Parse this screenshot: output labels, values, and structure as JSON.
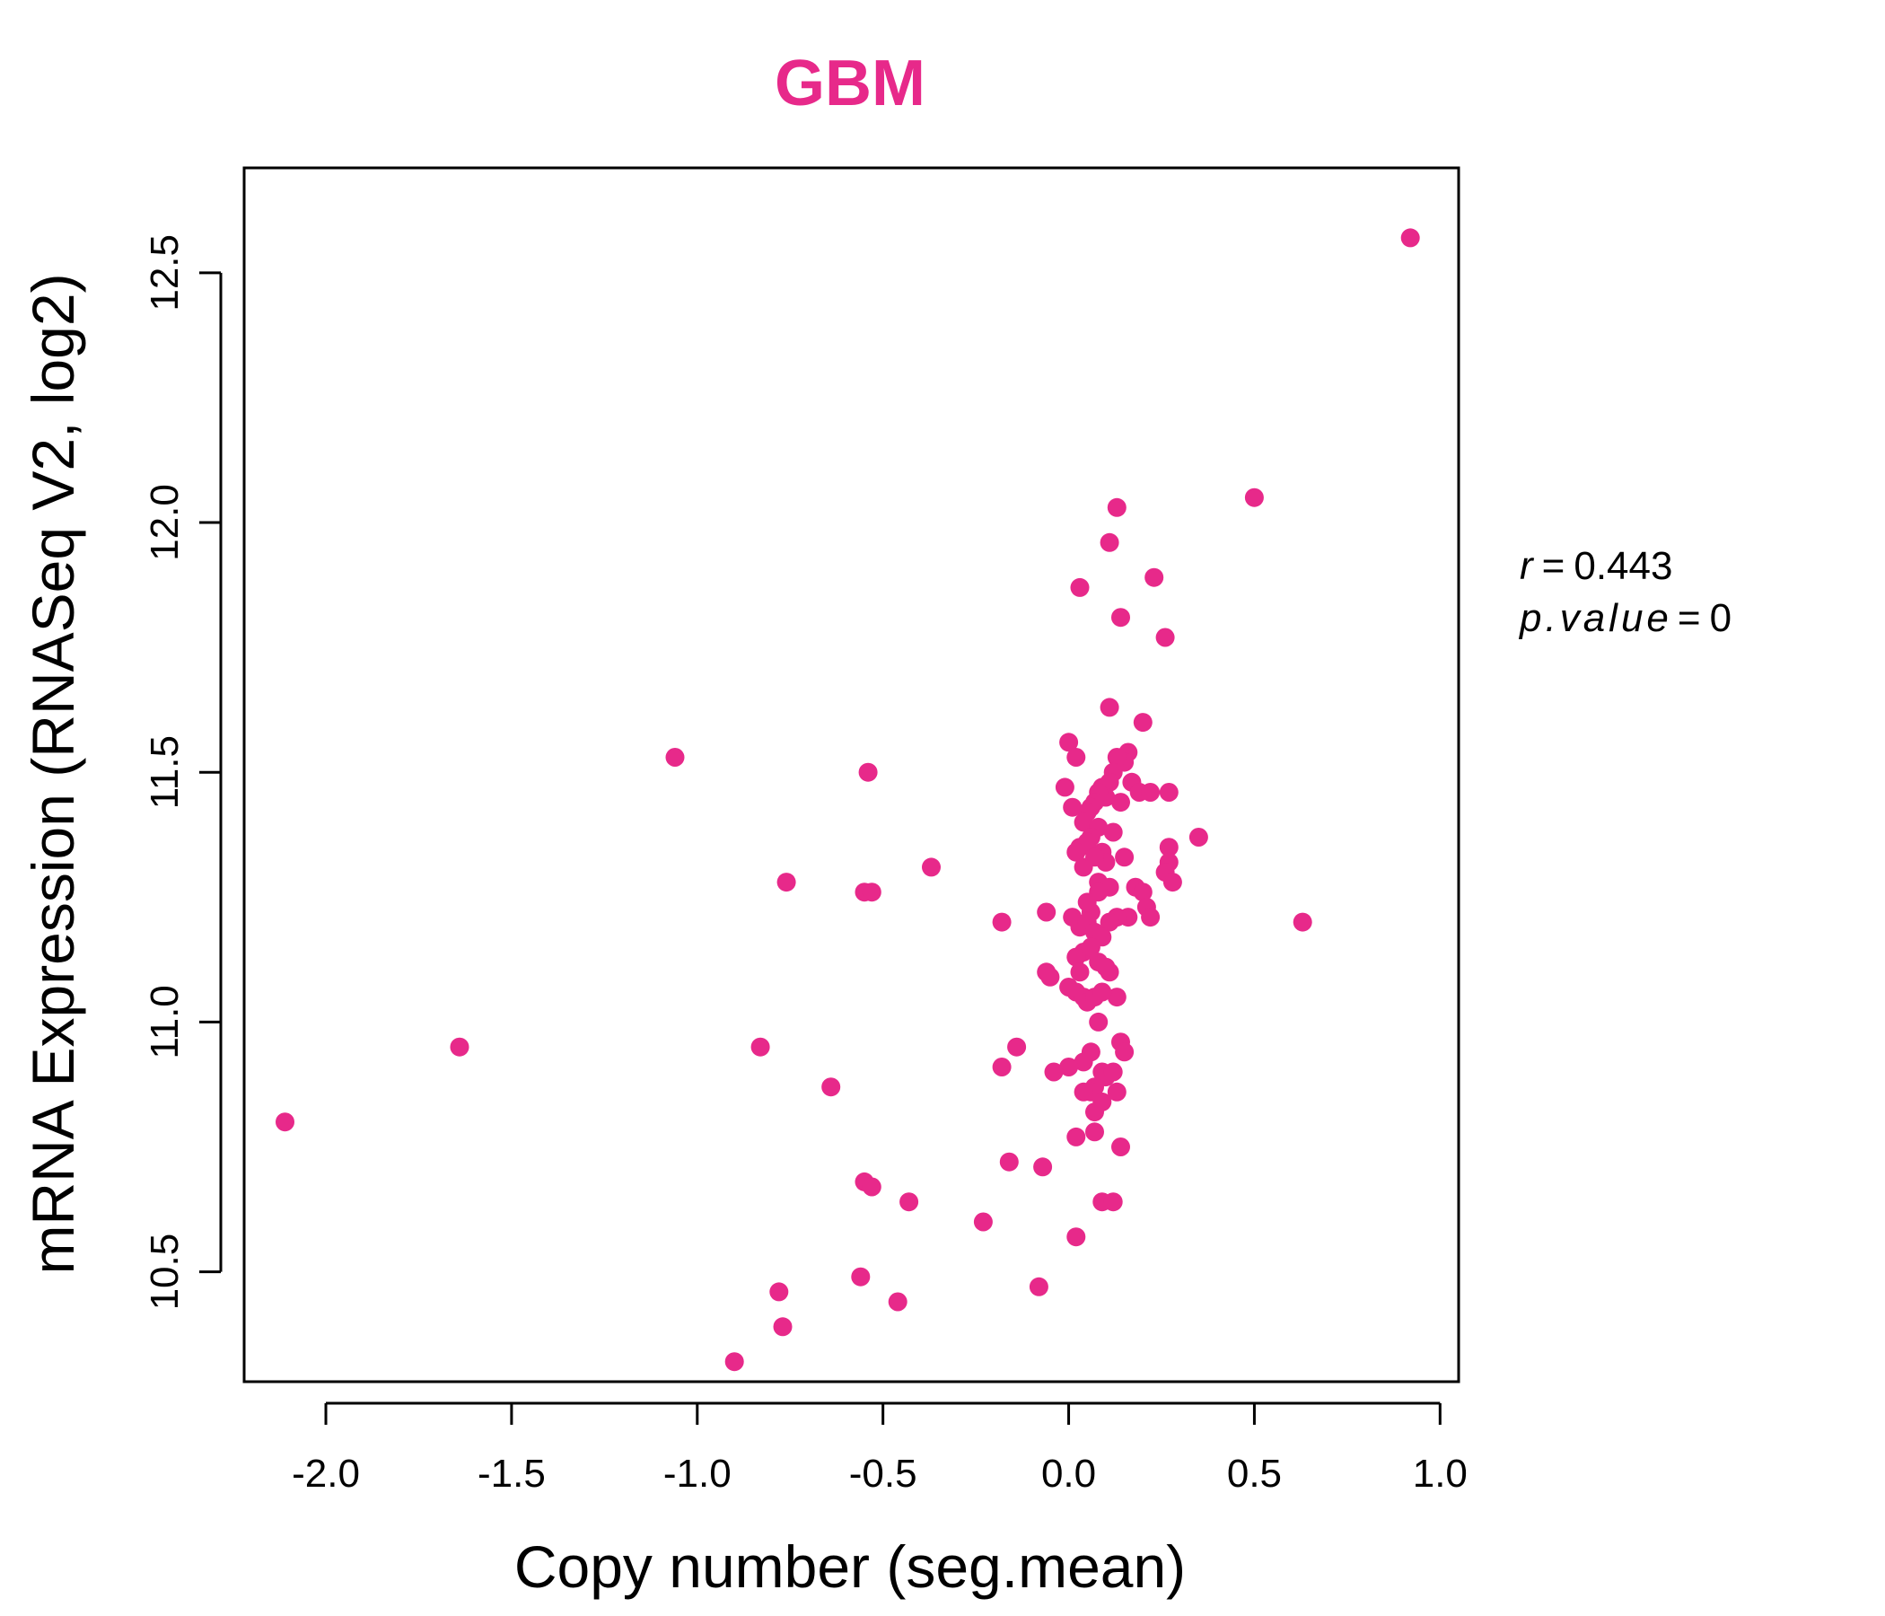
{
  "chart_data": {
    "type": "scatter",
    "title": "GBM",
    "xlabel": "Copy number (seg.mean)",
    "ylabel": "mRNA Expression (RNASeq V2, log2)",
    "xlim": [
      -2.22,
      1.05
    ],
    "ylim": [
      10.28,
      12.71
    ],
    "xticks": [
      -2.0,
      -1.5,
      -1.0,
      -0.5,
      0.0,
      0.5,
      1.0
    ],
    "xtick_labels": [
      "-2.0",
      "-1.5",
      "-1.0",
      "-0.5",
      "0.0",
      "0.5",
      "1.0"
    ],
    "yticks": [
      10.5,
      11.0,
      11.5,
      12.0,
      12.5
    ],
    "ytick_labels": [
      "10.5",
      "11.0",
      "11.5",
      "12.0",
      "12.5"
    ],
    "grid": false,
    "legend": "none",
    "point_color": "#e7298a",
    "title_color": "#e7298a",
    "annotation": {
      "r_label": "r",
      "r_value": "0.443",
      "p_label": "p.value",
      "p_value": "0"
    },
    "series": [
      {
        "x": [
          0.92,
          0.5,
          0.13,
          0.11,
          0.23,
          0.03,
          0.14,
          0.26,
          0.11,
          0.2,
          0.0,
          0.02,
          0.16,
          0.15,
          0.13,
          0.12,
          0.11,
          0.09,
          0.1,
          0.08,
          0.07,
          0.06,
          0.05,
          0.17,
          0.19,
          0.22,
          0.27,
          0.04,
          0.01,
          -0.01,
          0.14,
          0.08,
          0.35,
          0.27,
          0.03,
          0.06,
          0.05,
          0.09,
          0.12,
          0.15,
          0.27,
          0.26,
          0.28,
          0.1,
          0.02,
          0.04,
          0.07,
          0.08,
          0.18,
          0.2,
          0.21,
          0.22,
          0.16,
          0.13,
          0.11,
          0.06,
          -0.06,
          0.01,
          0.03,
          0.05,
          0.07,
          0.09,
          0.04,
          0.02,
          0.06,
          0.11,
          0.08,
          0.1,
          0.03,
          -0.06,
          -0.05,
          0.0,
          0.02,
          0.04,
          0.05,
          0.07,
          0.13,
          0.09,
          0.08,
          0.14,
          0.15,
          0.06,
          0.04,
          -0.14,
          0.0,
          -0.04,
          0.09,
          0.1,
          0.12,
          0.13,
          0.07,
          0.06,
          0.04,
          0.09,
          0.07,
          0.02,
          0.07,
          0.14,
          -0.16,
          -0.07,
          0.09,
          0.12,
          -0.23,
          0.02,
          -0.08,
          0.63,
          -0.18,
          -0.18,
          -0.37,
          -0.55,
          -0.53,
          -0.54,
          -0.76,
          -1.06,
          -1.64,
          -2.11,
          -0.83,
          -0.64,
          -0.55,
          -0.53,
          -0.43,
          -0.56,
          -0.46,
          -0.78,
          -0.77,
          -0.9,
          0.11,
          0.08,
          0.05
        ],
        "y": [
          12.57,
          12.05,
          12.03,
          11.96,
          11.89,
          11.87,
          11.81,
          11.77,
          11.63,
          11.6,
          11.56,
          11.53,
          11.54,
          11.52,
          11.53,
          11.5,
          11.48,
          11.47,
          11.45,
          11.46,
          11.44,
          11.43,
          11.42,
          11.48,
          11.46,
          11.46,
          11.46,
          11.4,
          11.43,
          11.47,
          11.44,
          11.39,
          11.37,
          11.35,
          11.35,
          11.37,
          11.36,
          11.34,
          11.38,
          11.33,
          11.32,
          11.3,
          11.28,
          11.32,
          11.34,
          11.31,
          11.33,
          11.28,
          11.27,
          11.26,
          11.23,
          11.21,
          11.21,
          11.21,
          11.2,
          11.22,
          11.22,
          11.21,
          11.19,
          11.2,
          11.18,
          11.17,
          11.14,
          11.13,
          11.15,
          11.1,
          11.12,
          11.11,
          11.1,
          11.1,
          11.09,
          11.07,
          11.06,
          11.05,
          11.04,
          11.05,
          11.05,
          11.06,
          11.0,
          10.96,
          10.94,
          10.94,
          10.92,
          10.95,
          10.91,
          10.9,
          10.9,
          10.89,
          10.9,
          10.86,
          10.87,
          10.86,
          10.86,
          10.84,
          10.82,
          10.77,
          10.78,
          10.75,
          10.72,
          10.71,
          10.64,
          10.64,
          10.6,
          10.57,
          10.47,
          11.2,
          11.2,
          10.91,
          11.31,
          11.26,
          11.26,
          11.5,
          11.28,
          11.53,
          10.95,
          10.8,
          10.95,
          10.87,
          10.68,
          10.67,
          10.64,
          10.49,
          10.44,
          10.46,
          10.39,
          10.32,
          11.27,
          11.26,
          11.24
        ]
      }
    ]
  }
}
